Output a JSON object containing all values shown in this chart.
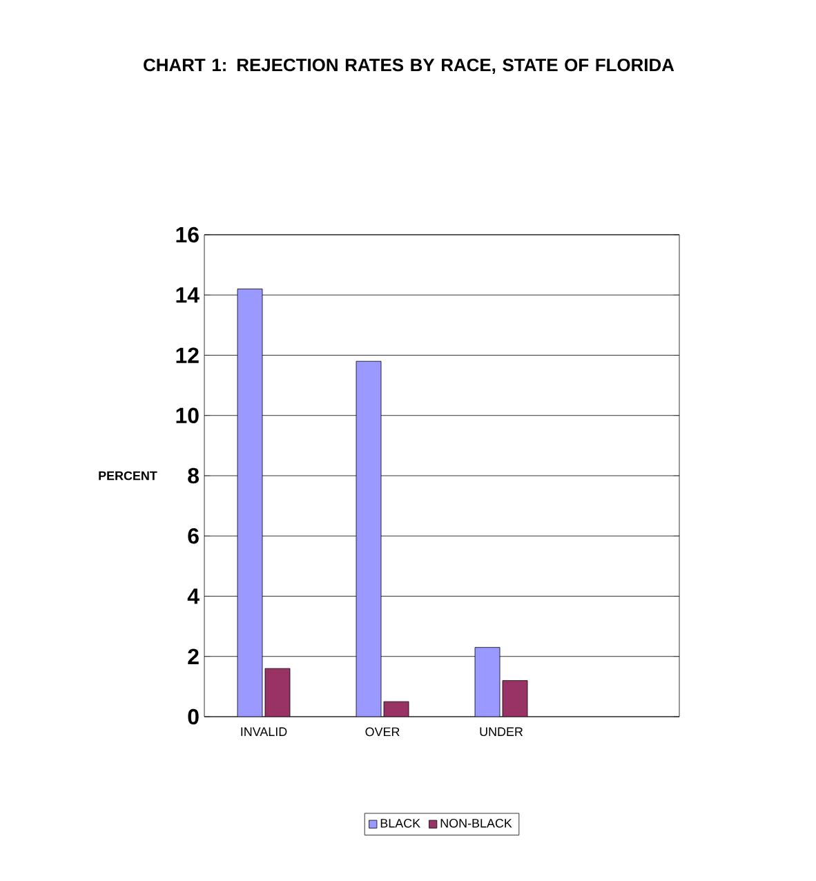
{
  "chart_data": {
    "type": "bar",
    "title": "CHART 1: REJECTION RATES BY RACE, STATE OF FLORIDA",
    "ylabel": "PERCENT",
    "categories": [
      "INVALID",
      "OVER",
      "UNDER",
      null
    ],
    "series": [
      {
        "name": "BLACK",
        "color": "#9999ff",
        "values": [
          14.2,
          11.8,
          2.3,
          null
        ]
      },
      {
        "name": "NON-BLACK",
        "color": "#993366",
        "values": [
          1.6,
          0.5,
          1.2,
          null
        ]
      }
    ],
    "ylim": [
      0,
      16
    ],
    "yticks": [
      0,
      2,
      4,
      6,
      8,
      10,
      12,
      14,
      16
    ],
    "grid": "y",
    "legend": "bottom"
  }
}
